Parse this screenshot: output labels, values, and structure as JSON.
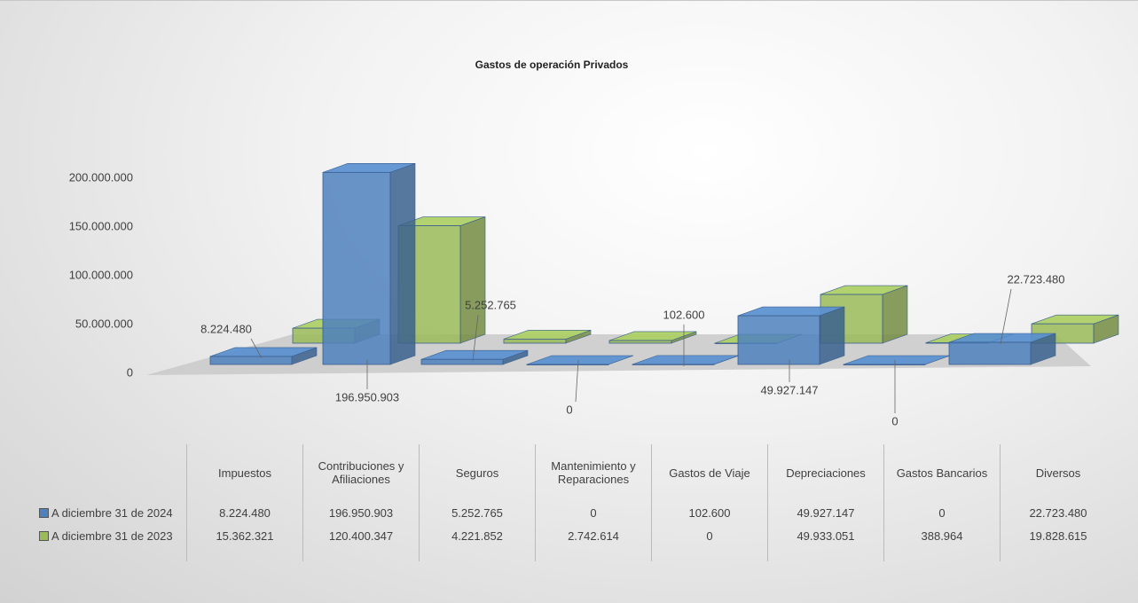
{
  "chart_data": {
    "type": "bar3d",
    "title": "Gastos de operación Privados",
    "categories": [
      "Impuestos",
      "Contribuciones y Afiliaciones",
      "Seguros",
      "Mantenimiento y Reparaciones",
      "Gastos de Viaje",
      "Depreciaciones",
      "Gastos Bancarios",
      "Diversos"
    ],
    "series": [
      {
        "name": "A diciembre 31 de 2024",
        "color": "#4f81bd",
        "values": [
          8224480,
          196950903,
          5252765,
          0,
          102600,
          49927147,
          0,
          22723480
        ],
        "value_labels": [
          "8.224.480",
          "196.950.903",
          "5.252.765",
          "0",
          "102.600",
          "49.927.147",
          "0",
          "22.723.480"
        ]
      },
      {
        "name": "A diciembre 31 de 2023",
        "color": "#9bbb59",
        "values": [
          15362321,
          120400347,
          4221852,
          2742614,
          0,
          49933051,
          388964,
          19828615
        ],
        "value_labels": [
          "15.362.321",
          "120.400.347",
          "4.221.852",
          "2.742.614",
          "0",
          "49.933.051",
          "388.964",
          "19.828.615"
        ]
      }
    ],
    "ylim": [
      0,
      200000000
    ],
    "yticks": [
      0,
      {
        "value": 50000000,
        "label": "50.000.000"
      },
      {
        "value": 100000000,
        "label": "100.000.000"
      },
      {
        "value": 150000000,
        "label": "150.000.000"
      },
      {
        "value": 200000000,
        "label": "200.000.000"
      }
    ]
  }
}
